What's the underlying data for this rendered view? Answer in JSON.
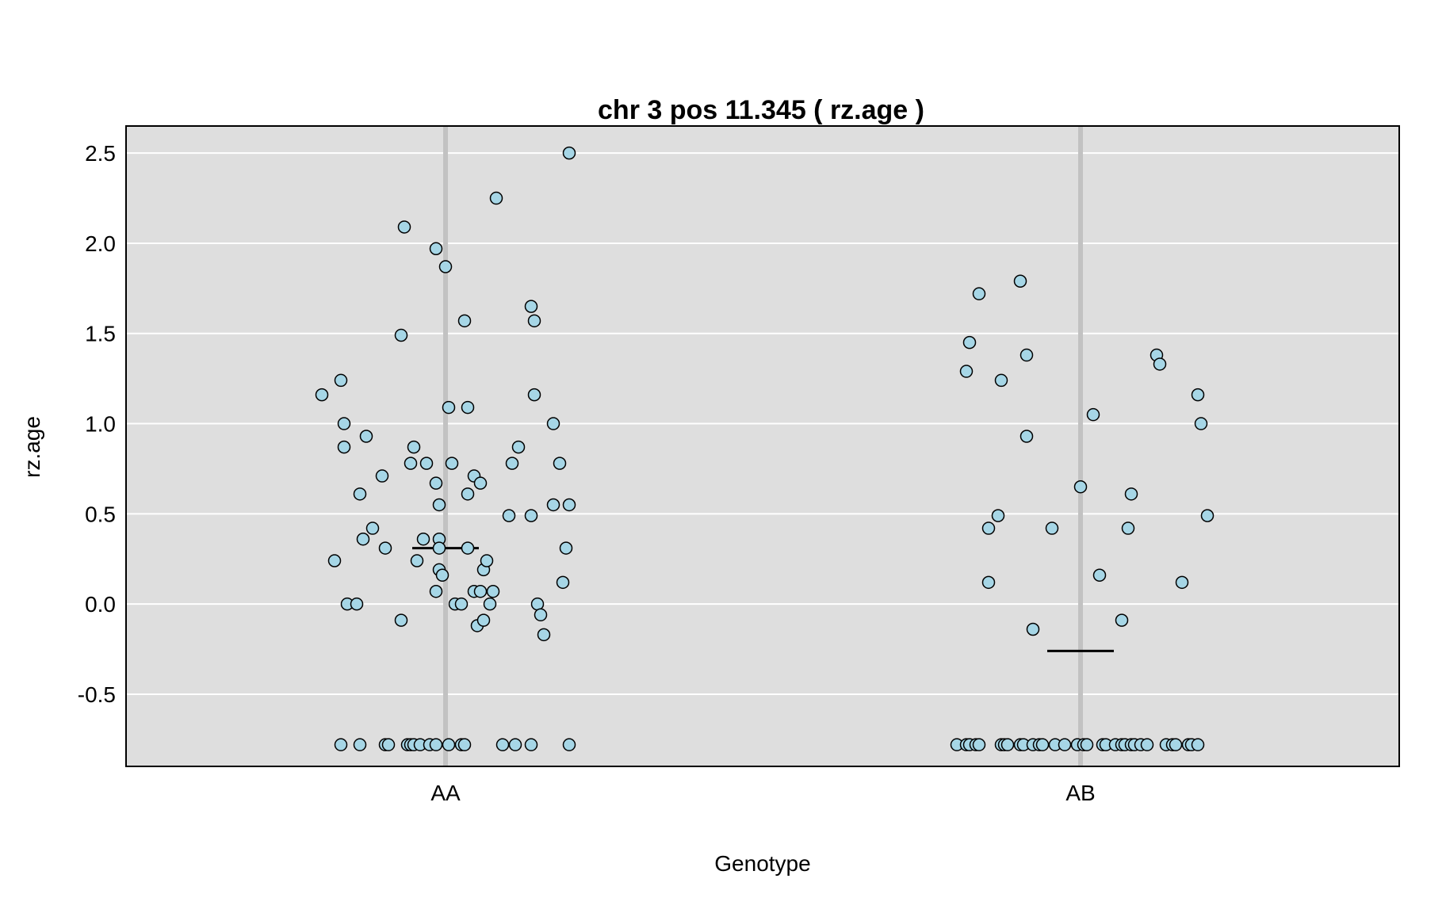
{
  "chart_data": {
    "type": "scatter",
    "title": "chr 3 pos 11.345 ( rz.age )",
    "xlabel": "Genotype",
    "ylabel": "rz.age",
    "categories": [
      "AA",
      "AB"
    ],
    "ylim": [
      -0.9,
      2.65
    ],
    "yticks": [
      "-0.5",
      "0.0",
      "0.5",
      "1.0",
      "1.5",
      "2.0",
      "2.5"
    ],
    "grid": true,
    "point_color": "#a6d6e6",
    "panel_color": "#dedede",
    "series": [
      {
        "category": "AA",
        "mean": 0.31,
        "points": [
          {
            "j": -0.39,
            "y": 1.16
          },
          {
            "j": -0.35,
            "y": 0.24
          },
          {
            "j": -0.33,
            "y": 1.24
          },
          {
            "j": -0.32,
            "y": 1.0
          },
          {
            "j": -0.32,
            "y": 0.87
          },
          {
            "j": -0.31,
            "y": 0.0
          },
          {
            "j": -0.28,
            "y": 0.0
          },
          {
            "j": -0.27,
            "y": 0.61
          },
          {
            "j": -0.26,
            "y": 0.36
          },
          {
            "j": -0.25,
            "y": 0.93
          },
          {
            "j": -0.23,
            "y": 0.42
          },
          {
            "j": -0.2,
            "y": 0.71
          },
          {
            "j": -0.19,
            "y": 0.31
          },
          {
            "j": -0.14,
            "y": 1.49
          },
          {
            "j": -0.14,
            "y": -0.09
          },
          {
            "j": -0.13,
            "y": 2.09
          },
          {
            "j": -0.11,
            "y": 0.78
          },
          {
            "j": -0.1,
            "y": 0.87
          },
          {
            "j": -0.09,
            "y": 0.24
          },
          {
            "j": -0.07,
            "y": 0.36
          },
          {
            "j": -0.06,
            "y": 0.78
          },
          {
            "j": -0.03,
            "y": 1.97
          },
          {
            "j": -0.03,
            "y": 0.67
          },
          {
            "j": -0.03,
            "y": 0.07
          },
          {
            "j": -0.02,
            "y": 0.55
          },
          {
            "j": -0.02,
            "y": 0.36
          },
          {
            "j": -0.02,
            "y": 0.31
          },
          {
            "j": -0.02,
            "y": 0.19
          },
          {
            "j": -0.01,
            "y": 0.16
          },
          {
            "j": 0.0,
            "y": 1.87
          },
          {
            "j": 0.01,
            "y": 1.09
          },
          {
            "j": 0.02,
            "y": 0.78
          },
          {
            "j": 0.03,
            "y": 0.0
          },
          {
            "j": 0.05,
            "y": 0.0
          },
          {
            "j": 0.06,
            "y": 1.57
          },
          {
            "j": 0.07,
            "y": 1.09
          },
          {
            "j": 0.07,
            "y": 0.61
          },
          {
            "j": 0.07,
            "y": 0.31
          },
          {
            "j": 0.09,
            "y": 0.71
          },
          {
            "j": 0.09,
            "y": 0.07
          },
          {
            "j": 0.1,
            "y": -0.12
          },
          {
            "j": 0.11,
            "y": 0.07
          },
          {
            "j": 0.11,
            "y": 0.67
          },
          {
            "j": 0.12,
            "y": 0.19
          },
          {
            "j": 0.12,
            "y": -0.09
          },
          {
            "j": 0.13,
            "y": 0.24
          },
          {
            "j": 0.14,
            "y": 0.0
          },
          {
            "j": 0.15,
            "y": 0.07
          },
          {
            "j": 0.16,
            "y": 2.25
          },
          {
            "j": 0.2,
            "y": 0.49
          },
          {
            "j": 0.21,
            "y": 0.78
          },
          {
            "j": 0.23,
            "y": 0.87
          },
          {
            "j": 0.27,
            "y": 0.49
          },
          {
            "j": 0.27,
            "y": 1.65
          },
          {
            "j": 0.28,
            "y": 1.16
          },
          {
            "j": 0.28,
            "y": 1.57
          },
          {
            "j": 0.29,
            "y": 0.0
          },
          {
            "j": 0.3,
            "y": -0.06
          },
          {
            "j": 0.31,
            "y": -0.17
          },
          {
            "j": 0.34,
            "y": 1.0
          },
          {
            "j": 0.34,
            "y": 0.55
          },
          {
            "j": 0.36,
            "y": 0.78
          },
          {
            "j": 0.37,
            "y": 0.12
          },
          {
            "j": 0.38,
            "y": 0.31
          },
          {
            "j": 0.39,
            "y": 2.5
          },
          {
            "j": 0.39,
            "y": 0.55
          },
          {
            "j": -0.33,
            "y": -0.78
          },
          {
            "j": -0.27,
            "y": -0.78
          },
          {
            "j": -0.19,
            "y": -0.78
          },
          {
            "j": -0.18,
            "y": -0.78
          },
          {
            "j": -0.12,
            "y": -0.78
          },
          {
            "j": -0.11,
            "y": -0.78
          },
          {
            "j": -0.1,
            "y": -0.78
          },
          {
            "j": -0.08,
            "y": -0.78
          },
          {
            "j": -0.05,
            "y": -0.78
          },
          {
            "j": -0.03,
            "y": -0.78
          },
          {
            "j": 0.01,
            "y": -0.78
          },
          {
            "j": 0.05,
            "y": -0.78
          },
          {
            "j": 0.06,
            "y": -0.78
          },
          {
            "j": 0.18,
            "y": -0.78
          },
          {
            "j": 0.22,
            "y": -0.78
          },
          {
            "j": 0.27,
            "y": -0.78
          },
          {
            "j": 0.39,
            "y": -0.78
          }
        ]
      },
      {
        "category": "AB",
        "mean": -0.26,
        "points": [
          {
            "j": -0.36,
            "y": 1.29
          },
          {
            "j": -0.35,
            "y": 1.45
          },
          {
            "j": -0.32,
            "y": 1.72
          },
          {
            "j": -0.29,
            "y": 0.42
          },
          {
            "j": -0.29,
            "y": 0.12
          },
          {
            "j": -0.26,
            "y": 0.49
          },
          {
            "j": -0.25,
            "y": 1.24
          },
          {
            "j": -0.19,
            "y": 1.79
          },
          {
            "j": -0.17,
            "y": 1.38
          },
          {
            "j": -0.17,
            "y": 0.93
          },
          {
            "j": -0.15,
            "y": -0.14
          },
          {
            "j": -0.09,
            "y": 0.42
          },
          {
            "j": 0.0,
            "y": 0.65
          },
          {
            "j": 0.04,
            "y": 1.05
          },
          {
            "j": 0.06,
            "y": 0.16
          },
          {
            "j": 0.13,
            "y": -0.09
          },
          {
            "j": 0.15,
            "y": 0.42
          },
          {
            "j": 0.16,
            "y": 0.61
          },
          {
            "j": 0.24,
            "y": 1.38
          },
          {
            "j": 0.25,
            "y": 1.33
          },
          {
            "j": 0.32,
            "y": 0.12
          },
          {
            "j": 0.37,
            "y": 1.16
          },
          {
            "j": 0.38,
            "y": 1.0
          },
          {
            "j": 0.4,
            "y": 0.49
          },
          {
            "j": -0.39,
            "y": -0.78
          },
          {
            "j": -0.36,
            "y": -0.78
          },
          {
            "j": -0.35,
            "y": -0.78
          },
          {
            "j": -0.33,
            "y": -0.78
          },
          {
            "j": -0.32,
            "y": -0.78
          },
          {
            "j": -0.25,
            "y": -0.78
          },
          {
            "j": -0.24,
            "y": -0.78
          },
          {
            "j": -0.23,
            "y": -0.78
          },
          {
            "j": -0.19,
            "y": -0.78
          },
          {
            "j": -0.18,
            "y": -0.78
          },
          {
            "j": -0.15,
            "y": -0.78
          },
          {
            "j": -0.13,
            "y": -0.78
          },
          {
            "j": -0.12,
            "y": -0.78
          },
          {
            "j": -0.08,
            "y": -0.78
          },
          {
            "j": -0.05,
            "y": -0.78
          },
          {
            "j": -0.01,
            "y": -0.78
          },
          {
            "j": 0.01,
            "y": -0.78
          },
          {
            "j": 0.02,
            "y": -0.78
          },
          {
            "j": 0.07,
            "y": -0.78
          },
          {
            "j": 0.08,
            "y": -0.78
          },
          {
            "j": 0.11,
            "y": -0.78
          },
          {
            "j": 0.13,
            "y": -0.78
          },
          {
            "j": 0.14,
            "y": -0.78
          },
          {
            "j": 0.16,
            "y": -0.78
          },
          {
            "j": 0.17,
            "y": -0.78
          },
          {
            "j": 0.19,
            "y": -0.78
          },
          {
            "j": 0.21,
            "y": -0.78
          },
          {
            "j": 0.27,
            "y": -0.78
          },
          {
            "j": 0.29,
            "y": -0.78
          },
          {
            "j": 0.3,
            "y": -0.78
          },
          {
            "j": 0.34,
            "y": -0.78
          },
          {
            "j": 0.35,
            "y": -0.78
          },
          {
            "j": 0.37,
            "y": -0.78
          }
        ]
      }
    ]
  }
}
